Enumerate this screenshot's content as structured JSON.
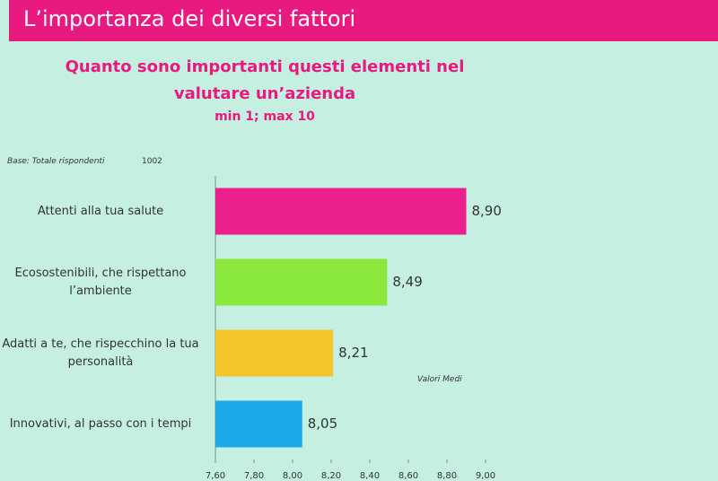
{
  "header": {
    "title": "L’importanza dei diversi fattori"
  },
  "chart_data": {
    "type": "bar",
    "orientation": "horizontal",
    "title": "Quanto sono importanti questi elementi nel valutare un’azienda",
    "subtitle": "min 1; max 10",
    "base_label": "Base: Totale rispondenti",
    "base_value": "1002",
    "annotation": "Valori Medi",
    "categories": [
      "Attenti alla tua salute",
      "Ecosostenibili, che rispettano l’ambiente",
      "Adatti a te, che rispecchino la tua personalità",
      "Innovativi, al passo con i tempi"
    ],
    "values": [
      8.9,
      8.49,
      8.21,
      8.05
    ],
    "value_labels": [
      "8,90",
      "8,49",
      "8,21",
      "8,05"
    ],
    "colors": [
      "#ec1f8e",
      "#8be83c",
      "#f2c52a",
      "#1ca9ec"
    ],
    "xlim": [
      7.6,
      9.0
    ],
    "xticks": [
      {
        "value": 7.6,
        "label": "7,60"
      },
      {
        "value": 7.8,
        "label": "7,80"
      },
      {
        "value": 8.0,
        "label": "8,00"
      },
      {
        "value": 8.2,
        "label": "8,20"
      },
      {
        "value": 8.4,
        "label": "8,40"
      },
      {
        "value": 8.6,
        "label": "8,60"
      },
      {
        "value": 8.8,
        "label": "8,80"
      },
      {
        "value": 9.0,
        "label": "9,00"
      }
    ]
  }
}
